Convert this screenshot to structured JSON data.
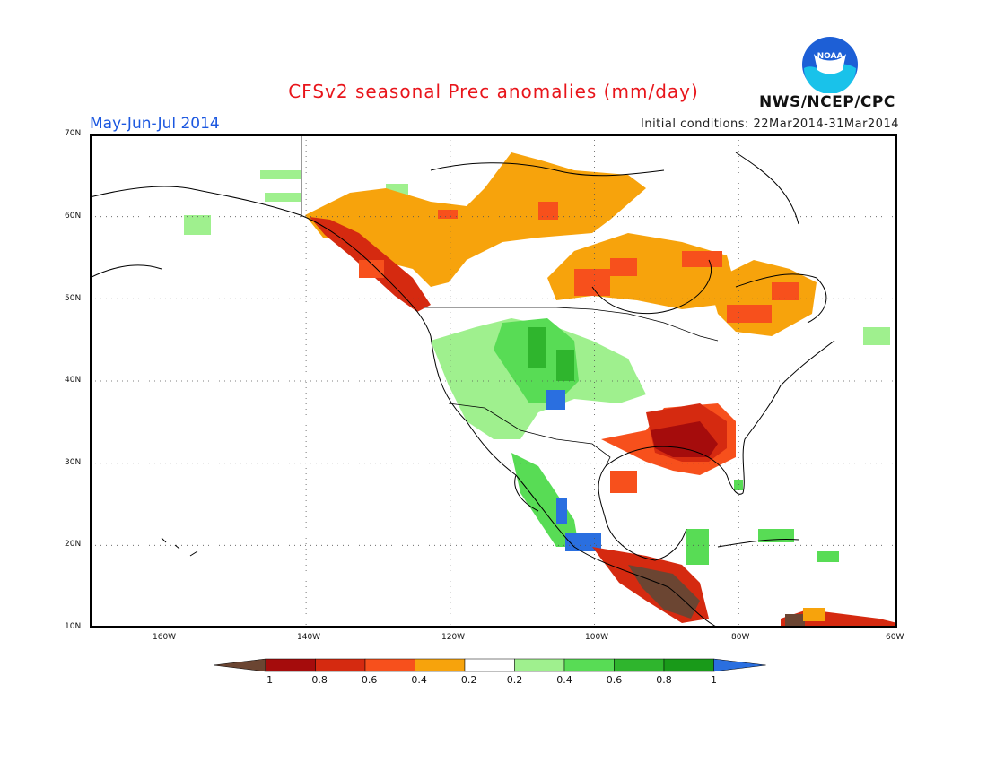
{
  "header": {
    "title": "CFSv2 seasonal Prec anomalies (mm/day)",
    "valid_period": "May-Jun-Jul 2014",
    "initial_conditions": "Initial conditions: 22Mar2014-31Mar2014",
    "agency": "NWS/NCEP/CPC",
    "logo_text": "NOAA"
  },
  "map": {
    "lon_range": [
      -172,
      -60
    ],
    "lat_range": [
      10,
      70
    ],
    "lat_labels": [
      "70N",
      "60N",
      "50N",
      "40N",
      "30N",
      "20N",
      "10N"
    ],
    "lon_labels": [
      "160W",
      "140W",
      "120W",
      "100W",
      "80W",
      "60W"
    ],
    "grid": "dotted"
  },
  "colorbar": {
    "ticks": [
      "−1",
      "−0.8",
      "−0.6",
      "−0.4",
      "−0.2",
      "0.2",
      "0.4",
      "0.6",
      "0.8",
      "1"
    ],
    "colors": [
      "#6b4532",
      "#a50c0c",
      "#d52a10",
      "#f7501c",
      "#f7a30c",
      "#ffffff",
      "#9ff08e",
      "#58dc55",
      "#2fb52d",
      "#199a19",
      "#2a6fe0"
    ]
  }
}
